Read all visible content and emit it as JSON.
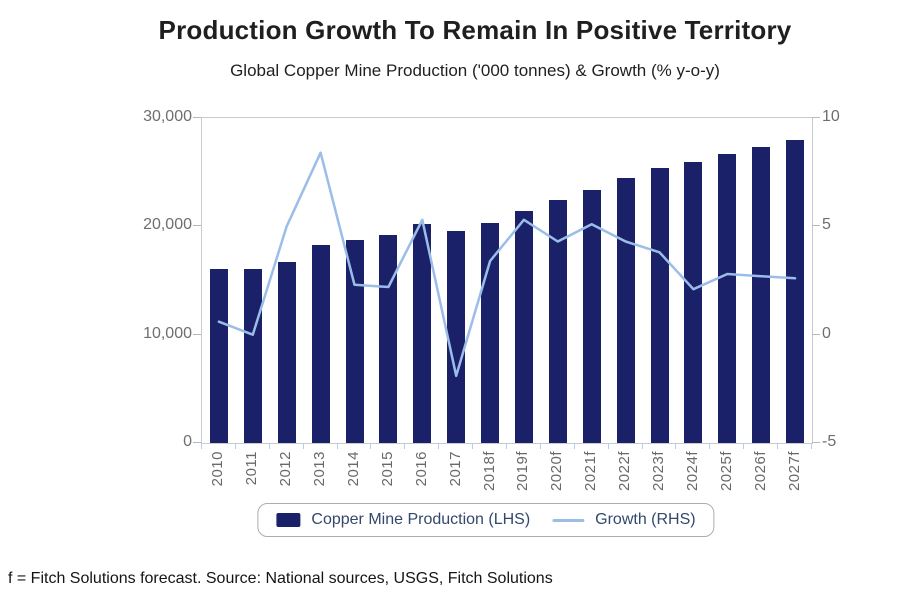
{
  "title": "Production Growth To Remain In Positive Territory",
  "subtitle": "Global Copper Mine Production ('000 tonnes) & Growth (% y-o-y)",
  "footnote": "f = Fitch Solutions forecast. Source: National sources, USGS, Fitch Solutions",
  "legend": {
    "bar_label": "Copper Mine Production (LHS)",
    "line_label": "Growth (RHS)"
  },
  "colors": {
    "bar": "#1a2169",
    "line": "#9bbde8",
    "title_text": "#1f1f1f",
    "axis_text": "#6e6e6e",
    "axis_line": "#c6cbd2",
    "x_tick": "#b6cdeb",
    "y_tick": "#b4b9c0",
    "legend_text": "#33486b",
    "legend_border": "#a9aeb6",
    "background": "#ffffff"
  },
  "chart_data": {
    "type": "bar+line",
    "categories": [
      "2010",
      "2011",
      "2012",
      "2013",
      "2014",
      "2015",
      "2016",
      "2017",
      "2018f",
      "2019f",
      "2020f",
      "2021f",
      "2022f",
      "2023f",
      "2024f",
      "2025f",
      "2026f",
      "2027f"
    ],
    "series": [
      {
        "name": "Copper Mine Production (LHS)",
        "type": "bar",
        "axis": "left",
        "unit": "'000 tonnes",
        "values": [
          16100,
          16050,
          16700,
          18300,
          18700,
          19200,
          20200,
          19600,
          20350,
          21400,
          22400,
          23400,
          24500,
          25400,
          25900,
          26700,
          27300,
          28000
        ]
      },
      {
        "name": "Growth (RHS)",
        "type": "line",
        "axis": "right",
        "unit": "% y-o-y",
        "values": [
          0.6,
          0.0,
          5.0,
          8.4,
          2.3,
          2.2,
          5.3,
          -1.9,
          3.4,
          5.3,
          4.3,
          5.1,
          4.3,
          3.8,
          2.1,
          2.8,
          2.7,
          2.6
        ]
      }
    ],
    "left_axis": {
      "min": 0,
      "max": 30000,
      "ticks": [
        {
          "label": "30,000",
          "value": 30000
        },
        {
          "label": "20,000",
          "value": 20000
        },
        {
          "label": "10,000",
          "value": 10000
        },
        {
          "label": "0",
          "value": 0
        }
      ]
    },
    "right_axis": {
      "min": -5,
      "max": 10,
      "ticks": [
        {
          "label": "10",
          "value": 10
        },
        {
          "label": "5",
          "value": 5
        },
        {
          "label": "0",
          "value": 0
        },
        {
          "label": "-5",
          "value": -5
        }
      ]
    },
    "grid": "off",
    "legend_position": "bottom"
  }
}
